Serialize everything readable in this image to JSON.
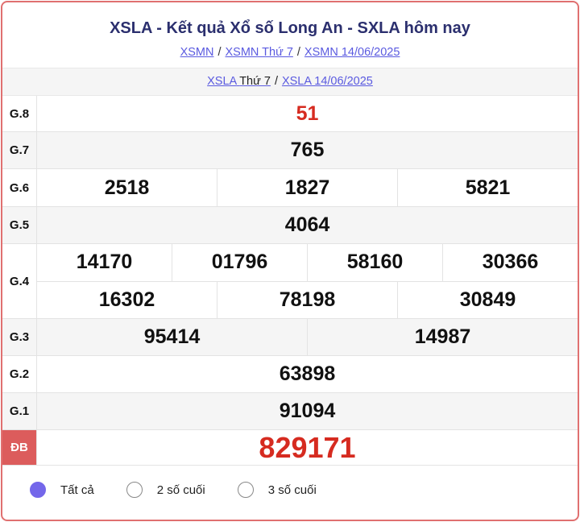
{
  "header": {
    "title": "XSLA - Kết quả Xổ số Long An - SXLA hôm nay",
    "breadcrumbs": [
      "XSMN",
      "XSMN Thứ 7",
      "XSMN 14/06/2025"
    ]
  },
  "sub": {
    "link1": "XSLA",
    "link1_rest": "Thứ 7",
    "link2": "XSLA 14/06/2025"
  },
  "prizes": [
    {
      "label": "G.8",
      "lines": [
        [
          "51"
        ]
      ]
    },
    {
      "label": "G.7",
      "lines": [
        [
          "765"
        ]
      ]
    },
    {
      "label": "G.6",
      "lines": [
        [
          "2518",
          "1827",
          "5821"
        ]
      ]
    },
    {
      "label": "G.5",
      "lines": [
        [
          "4064"
        ]
      ]
    },
    {
      "label": "G.4",
      "lines": [
        [
          "14170",
          "01796",
          "58160",
          "30366"
        ],
        [
          "16302",
          "78198",
          "30849"
        ]
      ]
    },
    {
      "label": "G.3",
      "lines": [
        [
          "95414",
          "14987"
        ]
      ]
    },
    {
      "label": "G.2",
      "lines": [
        [
          "63898"
        ]
      ]
    },
    {
      "label": "G.1",
      "lines": [
        [
          "91094"
        ]
      ]
    },
    {
      "label": "ĐB",
      "lines": [
        [
          "829171"
        ]
      ]
    }
  ],
  "options": [
    {
      "label": "Tất cả",
      "selected": true
    },
    {
      "label": "2 số cuối",
      "selected": false
    },
    {
      "label": "3 số cuối",
      "selected": false
    }
  ],
  "colors": {
    "accent": "#7467ea",
    "prize_red": "#d62b20",
    "title": "#2b2f6e",
    "border": "#e07070"
  }
}
